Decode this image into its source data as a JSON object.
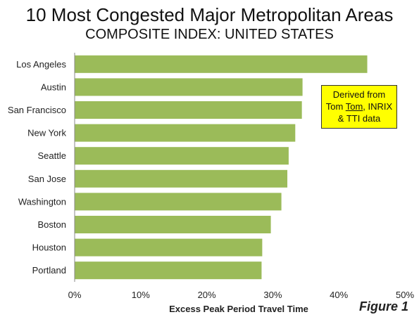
{
  "chart_data": {
    "type": "bar",
    "orientation": "horizontal",
    "title": "10 Most Congested Major Metropolitan Areas",
    "subtitle": "COMPOSITE INDEX: UNITED STATES",
    "xlabel": "Excess Peak Period Travel Time",
    "ylabel": "",
    "categories": [
      "Los Angeles",
      "Austin",
      "San Francisco",
      "New York",
      "Seattle",
      "San Jose",
      "Washington",
      "Boston",
      "Houston",
      "Portland"
    ],
    "values": [
      0.443,
      0.345,
      0.344,
      0.334,
      0.324,
      0.322,
      0.313,
      0.297,
      0.284,
      0.283
    ],
    "xlim": [
      0,
      0.5
    ],
    "x_ticks": [
      "0%",
      "10%",
      "20%",
      "30%",
      "40%",
      "50%"
    ],
    "gridlines": false,
    "bar_color": "#9bbb59",
    "annotation": {
      "line1": "Derived from",
      "line2a": "Tom ",
      "line2b": "Tom",
      "line2c": ", INRIX",
      "line3": "& TTI data",
      "background": "#ffff00"
    },
    "figure_label": "Figure 1"
  }
}
